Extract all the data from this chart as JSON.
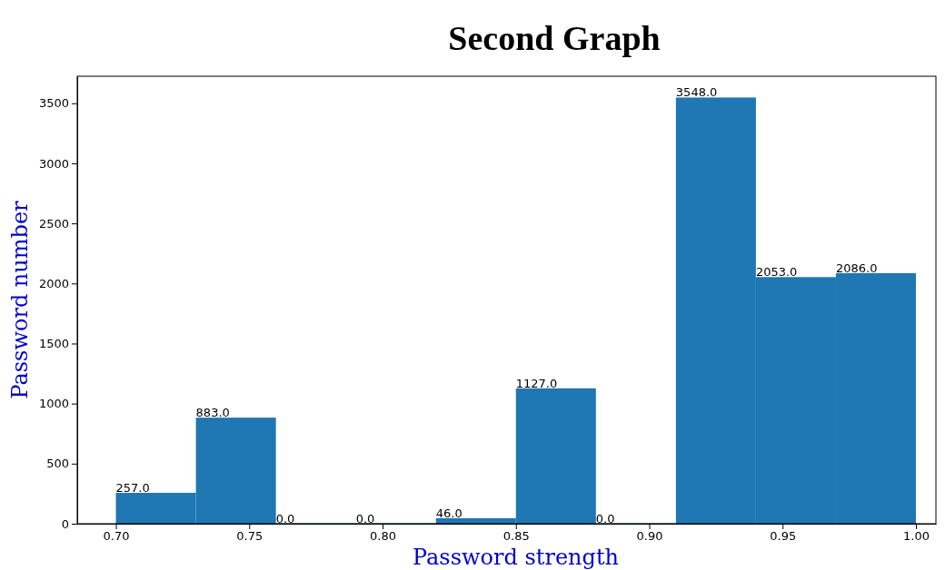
{
  "chart_data": {
    "type": "histogram",
    "title": "Second Graph",
    "xlabel": "Password strength",
    "ylabel": "Password number",
    "bins": [
      0.7,
      0.73,
      0.76,
      0.79,
      0.82,
      0.85,
      0.88,
      0.91,
      0.94,
      0.97,
      1.0
    ],
    "values": [
      257,
      883,
      0,
      0,
      46,
      1127,
      0,
      3548,
      2053,
      2086
    ],
    "value_labels": [
      "257.0",
      "883.0",
      "0.0",
      "0.0",
      "46.0",
      "1127.0",
      "0.0",
      "3548.0",
      "2053.0",
      "2086.0"
    ],
    "color": "#1f77b4",
    "xlim": [
      0.6855,
      1.0075
    ],
    "xticks": [
      {
        "value": 0.7,
        "label": "0.70"
      },
      {
        "value": 0.75,
        "label": "0.75"
      },
      {
        "value": 0.8,
        "label": "0.80"
      },
      {
        "value": 0.85,
        "label": "0.85"
      },
      {
        "value": 0.9,
        "label": "0.90"
      },
      {
        "value": 0.95,
        "label": "0.95"
      },
      {
        "value": 1.0,
        "label": "1.00"
      }
    ],
    "ylim": [
      0,
      3725
    ],
    "yticks": [
      0,
      500,
      1000,
      1500,
      2000,
      2500,
      3000,
      3500
    ]
  }
}
